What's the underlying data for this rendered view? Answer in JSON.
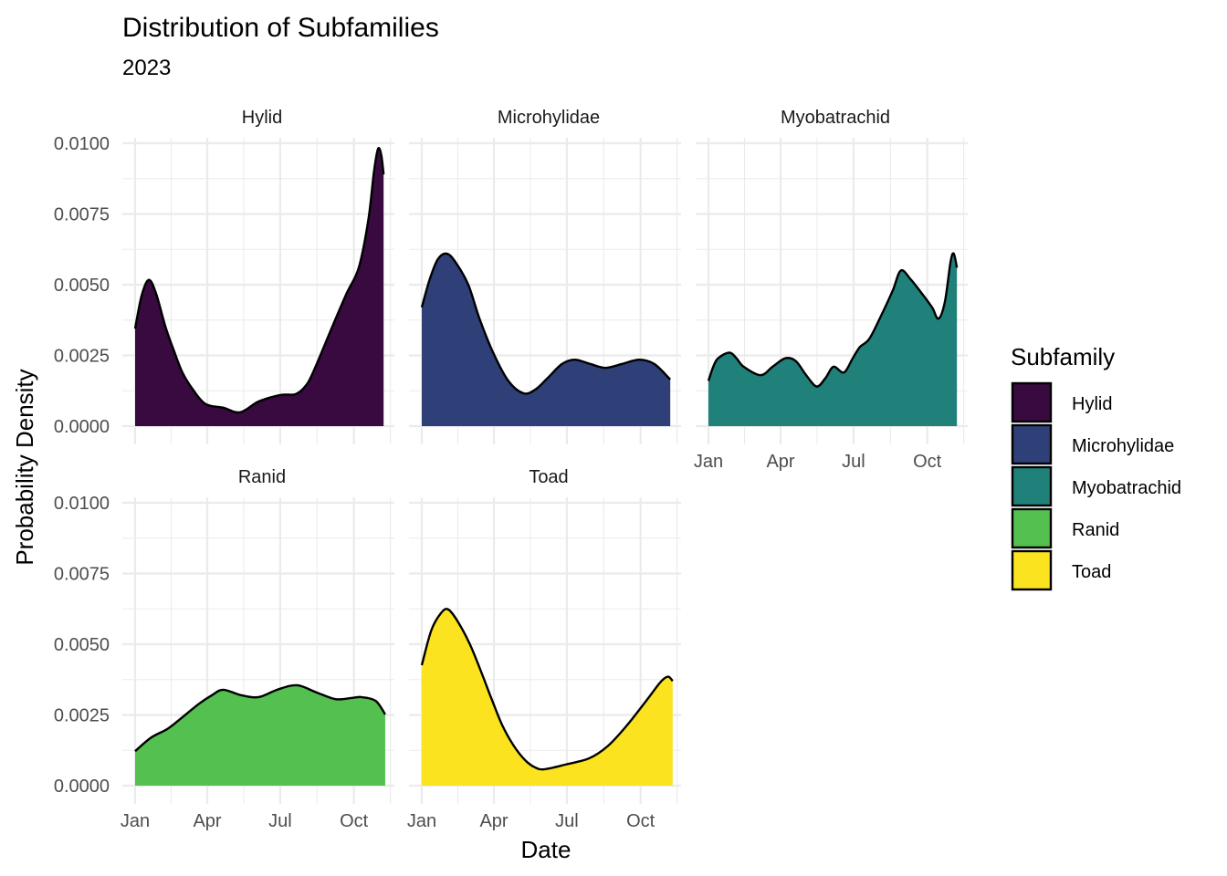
{
  "chart_data": {
    "type": "area",
    "subtype": "density-facet",
    "title": "Distribution of Subfamilies",
    "subtitle": "2023",
    "xlabel": "Date",
    "ylabel": "Probability Density",
    "x_unit": "day of year 2023 (0 = Jan 1)",
    "xlim": [
      -16,
      330
    ],
    "ylim": [
      0,
      0.0104
    ],
    "x_ticks": [
      {
        "label": "Jan",
        "value": 0
      },
      {
        "label": "Apr",
        "value": 90
      },
      {
        "label": "Jul",
        "value": 181
      },
      {
        "label": "Oct",
        "value": 273
      }
    ],
    "y_ticks": [
      {
        "label": "0.0000",
        "value": 0
      },
      {
        "label": "0.0025",
        "value": 0.0025
      },
      {
        "label": "0.0050",
        "value": 0.005
      },
      {
        "label": "0.0075",
        "value": 0.0075
      },
      {
        "label": "0.0100",
        "value": 0.01
      }
    ],
    "grid": true,
    "legend": {
      "title": "Subfamily",
      "position": "right",
      "items": [
        {
          "label": "Hylid",
          "color": "#380A40"
        },
        {
          "label": "Microhylidae",
          "color": "#2F3F78"
        },
        {
          "label": "Myobatrachid",
          "color": "#20807A"
        },
        {
          "label": "Ranid",
          "color": "#53C04F"
        },
        {
          "label": "Toad",
          "color": "#FBE31F"
        }
      ]
    },
    "series": [
      {
        "name": "Hylid",
        "color": "#380A40",
        "points": [
          [
            0,
            0.00345
          ],
          [
            8,
            0.0046
          ],
          [
            17,
            0.00517
          ],
          [
            26,
            0.0047
          ],
          [
            38,
            0.0035
          ],
          [
            48,
            0.0027
          ],
          [
            59,
            0.0019
          ],
          [
            72,
            0.0013
          ],
          [
            88,
            0.00078
          ],
          [
            110,
            0.00065
          ],
          [
            131,
            0.00049
          ],
          [
            154,
            0.00087
          ],
          [
            181,
            0.0011
          ],
          [
            200,
            0.00113
          ],
          [
            212,
            0.0014
          ],
          [
            222,
            0.0019
          ],
          [
            245,
            0.00345
          ],
          [
            264,
            0.0047
          ],
          [
            279,
            0.0056
          ],
          [
            291,
            0.0073
          ],
          [
            298,
            0.009
          ],
          [
            303,
            0.0098
          ],
          [
            307,
            0.0096
          ],
          [
            310,
            0.0089
          ]
        ]
      },
      {
        "name": "Microhylidae",
        "color": "#2F3F78",
        "points": [
          [
            0,
            0.0042
          ],
          [
            10,
            0.0052
          ],
          [
            20,
            0.0059
          ],
          [
            31,
            0.0061
          ],
          [
            42,
            0.0058
          ],
          [
            58,
            0.005
          ],
          [
            72,
            0.0038
          ],
          [
            89,
            0.0026
          ],
          [
            108,
            0.0016
          ],
          [
            127,
            0.00116
          ],
          [
            142,
            0.0013
          ],
          [
            157,
            0.0017
          ],
          [
            175,
            0.0022
          ],
          [
            191,
            0.00235
          ],
          [
            210,
            0.0022
          ],
          [
            229,
            0.00206
          ],
          [
            250,
            0.0022
          ],
          [
            271,
            0.00235
          ],
          [
            290,
            0.0022
          ],
          [
            310,
            0.00165
          ]
        ]
      },
      {
        "name": "Myobatrachid",
        "color": "#20807A",
        "points": [
          [
            0,
            0.0016
          ],
          [
            6,
            0.0021
          ],
          [
            12,
            0.0024
          ],
          [
            26,
            0.0026
          ],
          [
            35,
            0.0024
          ],
          [
            44,
            0.0021
          ],
          [
            65,
            0.0018
          ],
          [
            80,
            0.0021
          ],
          [
            96,
            0.0024
          ],
          [
            109,
            0.0023
          ],
          [
            122,
            0.0018
          ],
          [
            135,
            0.0014
          ],
          [
            146,
            0.0017
          ],
          [
            156,
            0.0021
          ],
          [
            169,
            0.0019
          ],
          [
            180,
            0.0024
          ],
          [
            189,
            0.0028
          ],
          [
            201,
            0.0031
          ],
          [
            217,
            0.004
          ],
          [
            230,
            0.0048
          ],
          [
            240,
            0.0055
          ],
          [
            252,
            0.0052
          ],
          [
            266,
            0.0047
          ],
          [
            279,
            0.0042
          ],
          [
            287,
            0.0038
          ],
          [
            295,
            0.0044
          ],
          [
            302,
            0.0058
          ],
          [
            306,
            0.0061
          ],
          [
            310,
            0.0056
          ]
        ]
      },
      {
        "name": "Ranid",
        "color": "#53C04F",
        "points": [
          [
            0,
            0.00122
          ],
          [
            20,
            0.0017
          ],
          [
            40,
            0.002
          ],
          [
            56,
            0.00235
          ],
          [
            80,
            0.0029
          ],
          [
            96,
            0.0032
          ],
          [
            110,
            0.00339
          ],
          [
            132,
            0.0032
          ],
          [
            154,
            0.00313
          ],
          [
            178,
            0.0034
          ],
          [
            202,
            0.00355
          ],
          [
            226,
            0.0033
          ],
          [
            250,
            0.00306
          ],
          [
            270,
            0.0031
          ],
          [
            282,
            0.00313
          ],
          [
            300,
            0.003
          ],
          [
            312,
            0.00252
          ]
        ]
      },
      {
        "name": "Toad",
        "color": "#FBE31F",
        "points": [
          [
            0,
            0.00426
          ],
          [
            12,
            0.0055
          ],
          [
            24,
            0.0061
          ],
          [
            33,
            0.00623
          ],
          [
            45,
            0.0058
          ],
          [
            60,
            0.005
          ],
          [
            74,
            0.00403
          ],
          [
            88,
            0.003
          ],
          [
            101,
            0.0021
          ],
          [
            115,
            0.0014
          ],
          [
            129,
            0.0009
          ],
          [
            141,
            0.00065
          ],
          [
            153,
            0.00058
          ],
          [
            180,
            0.00075
          ],
          [
            209,
            0.00097
          ],
          [
            232,
            0.0014
          ],
          [
            255,
            0.0021
          ],
          [
            280,
            0.003
          ],
          [
            296,
            0.0036
          ],
          [
            303,
            0.0038
          ],
          [
            308,
            0.00385
          ],
          [
            313,
            0.0037
          ]
        ]
      }
    ]
  }
}
